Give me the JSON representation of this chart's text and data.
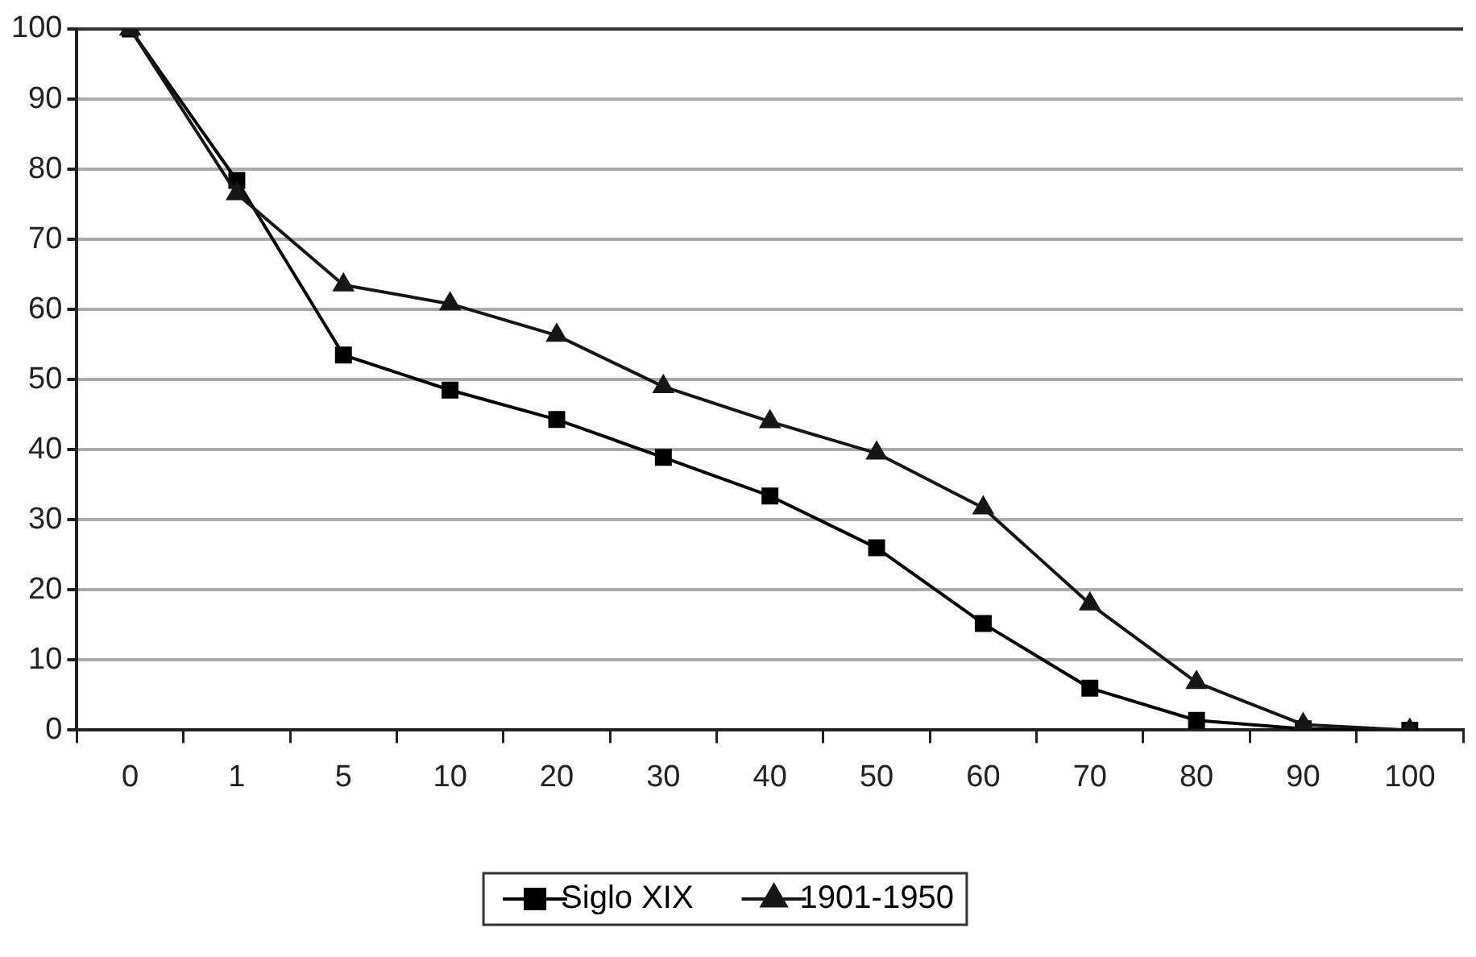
{
  "chart_data": {
    "type": "line",
    "categories": [
      "0",
      "1",
      "5",
      "10",
      "20",
      "30",
      "40",
      "50",
      "60",
      "70",
      "80",
      "90",
      "100"
    ],
    "series": [
      {
        "name": "Siglo XIX",
        "color": "#000000",
        "marker": "square",
        "values": [
          100,
          78.4,
          53.5,
          48.5,
          44.3,
          38.9,
          33.4,
          26,
          15.2,
          6,
          1.4,
          0.2,
          0
        ]
      },
      {
        "name": "1901-1950",
        "color": "#161616",
        "marker": "triangle",
        "values": [
          100,
          76.5,
          63.5,
          60.8,
          56.3,
          49,
          44,
          39.5,
          31.7,
          18,
          6.8,
          0.8,
          0
        ]
      }
    ],
    "ylim": [
      0,
      100
    ],
    "yticks": [
      0,
      10,
      20,
      30,
      40,
      50,
      60,
      70,
      80,
      90,
      100
    ],
    "grid": "y",
    "legend": "bottom",
    "line_style": "solid"
  }
}
